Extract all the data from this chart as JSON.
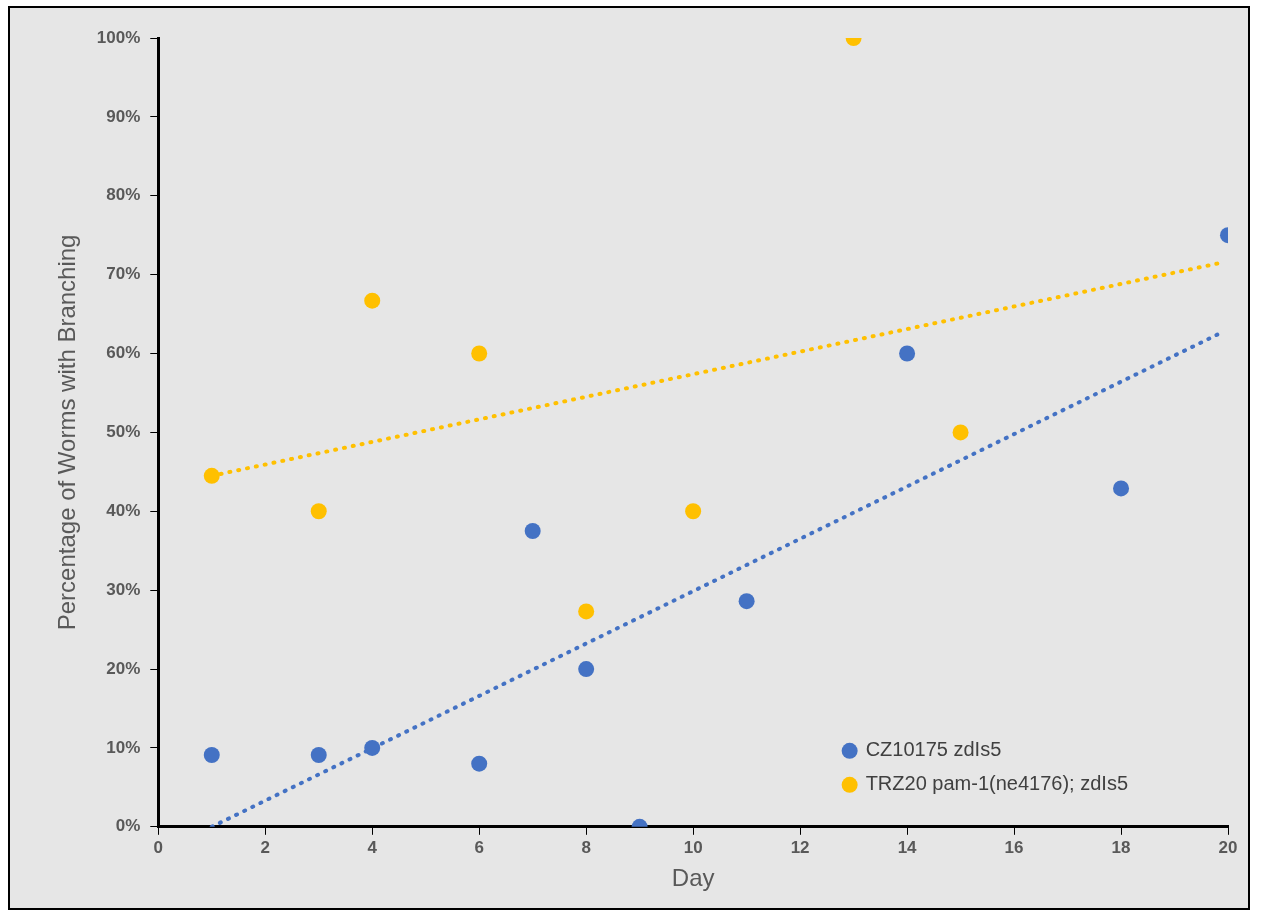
{
  "chart_data": {
    "type": "scatter",
    "xlabel": "Day",
    "ylabel": "Percentage of Worms with Branching",
    "xlim": [
      0,
      20
    ],
    "xticks": [
      0,
      2,
      4,
      6,
      8,
      10,
      12,
      14,
      16,
      18,
      20
    ],
    "ylim": [
      0,
      100
    ],
    "yticks": [
      {
        "value": 0,
        "label": "0%"
      },
      {
        "value": 10,
        "label": "10%"
      },
      {
        "value": 20,
        "label": "20%"
      },
      {
        "value": 30,
        "label": "30%"
      },
      {
        "value": 40,
        "label": "40%"
      },
      {
        "value": 50,
        "label": "50%"
      },
      {
        "value": 60,
        "label": "60%"
      },
      {
        "value": 70,
        "label": "70%"
      },
      {
        "value": 80,
        "label": "80%"
      },
      {
        "value": 90,
        "label": "90%"
      },
      {
        "value": 100,
        "label": "100%"
      }
    ],
    "grid": false,
    "legend": "bottom right",
    "marker": "circle",
    "series": [
      {
        "name": "CZ10175 zdIs5",
        "color": "#4472c4",
        "x": [
          1,
          3,
          4,
          6,
          7,
          8,
          9,
          11,
          14,
          18,
          20
        ],
        "values": [
          9.1,
          9.1,
          10,
          8,
          37.5,
          20,
          0,
          28.6,
          60,
          42.9,
          75
        ]
      },
      {
        "name": "TRZ20 pam-1(ne4176); zdIs5",
        "color": "#ffc000",
        "x": [
          1,
          3,
          4,
          6,
          8,
          10,
          13,
          15
        ],
        "values": [
          44.5,
          40,
          66.7,
          60,
          27.3,
          40,
          100,
          50
        ]
      },
      {
        "type": "line",
        "color": "#4472c4",
        "line_style": "dotted",
        "marker": "none",
        "x": [
          1,
          19.8
        ],
        "values": [
          0,
          62.4
        ]
      },
      {
        "type": "line",
        "color": "#ffc000",
        "line_style": "dotted",
        "marker": "none",
        "x": [
          1,
          19.8
        ],
        "values": [
          44.5,
          71.4
        ]
      }
    ]
  }
}
